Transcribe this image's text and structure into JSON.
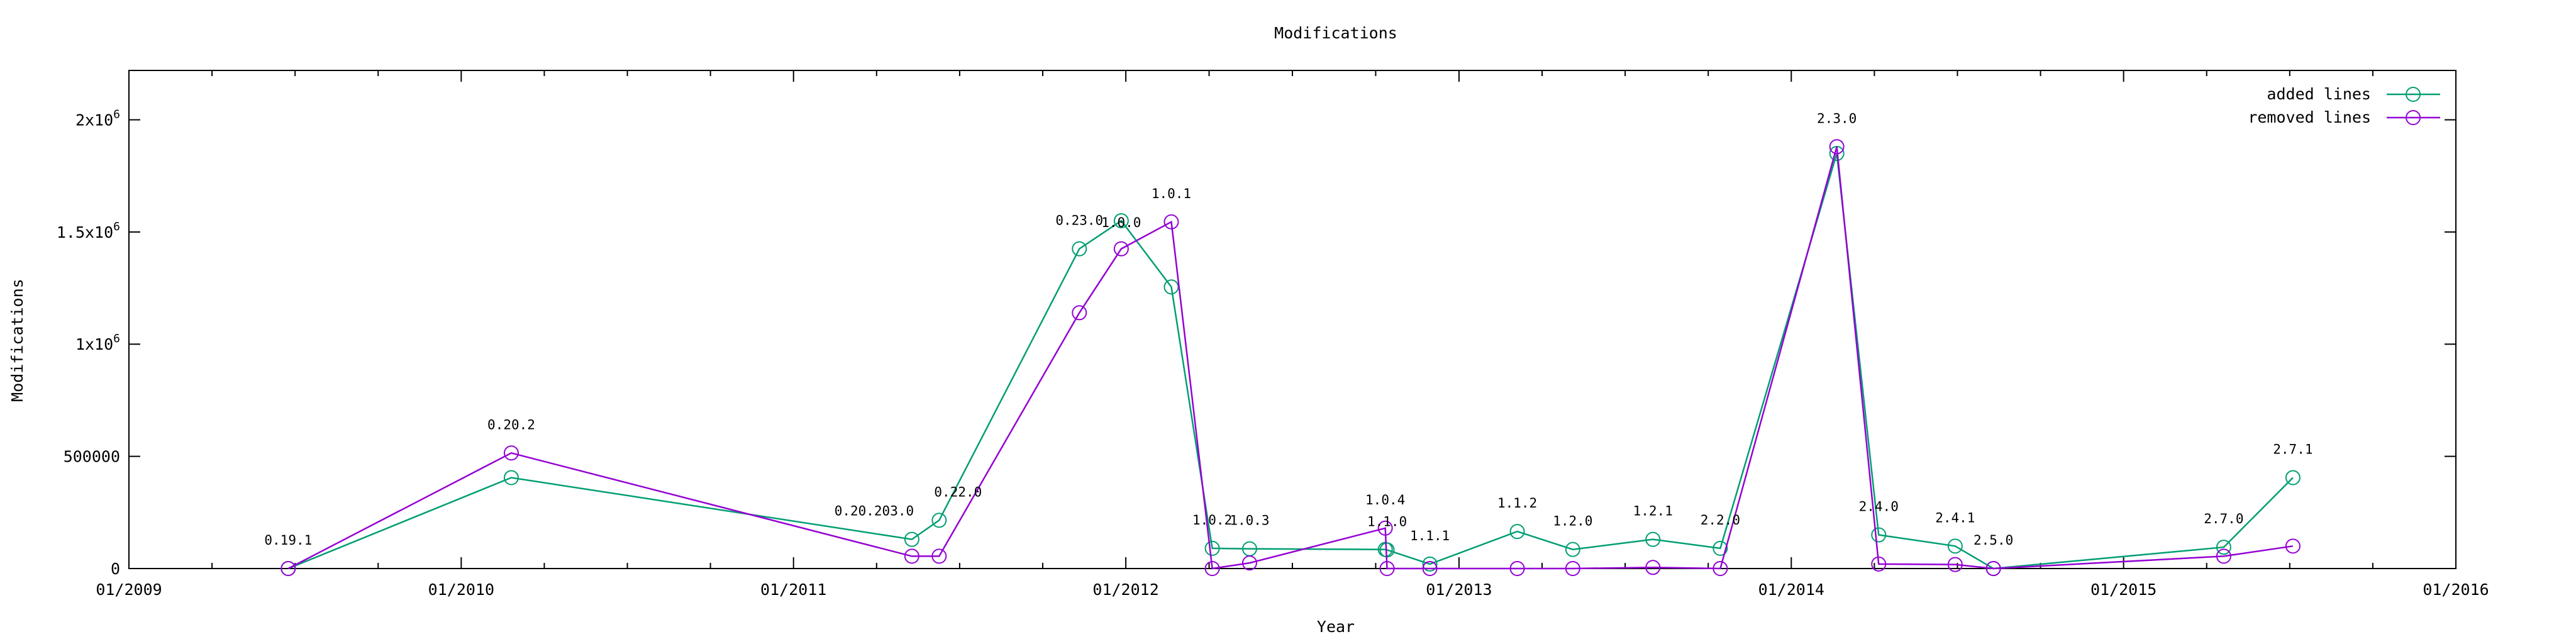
{
  "chart_data": {
    "type": "line",
    "title": "Modifications",
    "xlabel": "Year",
    "ylabel": "Modifications",
    "xlim": [
      "2009-01-01",
      "2016-01-01"
    ],
    "ylim": [
      0,
      2220000
    ],
    "x_ticks": [
      {
        "date": "2009-01-01",
        "label": "01/2009"
      },
      {
        "date": "2010-01-01",
        "label": "01/2010"
      },
      {
        "date": "2011-01-01",
        "label": "01/2011"
      },
      {
        "date": "2012-01-01",
        "label": "01/2012"
      },
      {
        "date": "2013-01-01",
        "label": "01/2013"
      },
      {
        "date": "2014-01-01",
        "label": "01/2014"
      },
      {
        "date": "2015-01-01",
        "label": "01/2015"
      },
      {
        "date": "2016-01-01",
        "label": "01/2016"
      }
    ],
    "y_ticks": [
      {
        "value": 0,
        "label": "0"
      },
      {
        "value": 500000,
        "label": "500000"
      },
      {
        "value": 1000000,
        "label": "1x10",
        "sup": "6"
      },
      {
        "value": 1500000,
        "label": "1.5x10",
        "sup": "6"
      },
      {
        "value": 2000000,
        "label": "2x10",
        "sup": "6"
      }
    ],
    "grid": false,
    "legend_position": "top-right",
    "releases": [
      {
        "label": "0.19.1",
        "date": "2009-06-25"
      },
      {
        "label": "0.20.2",
        "date": "2010-02-25"
      },
      {
        "label": "0.20.203.0",
        "date": "2011-05-11"
      },
      {
        "label": "0.22.0",
        "date": "2011-06-10"
      },
      {
        "label": "0.23.0",
        "date": "2011-11-11"
      },
      {
        "label": "1.0.0",
        "date": "2011-12-27"
      },
      {
        "label": "1.0.1",
        "date": "2012-02-20"
      },
      {
        "label": "1.0.2",
        "date": "2012-04-05"
      },
      {
        "label": "1.0.3",
        "date": "2012-05-16"
      },
      {
        "label": "1.0.4",
        "date": "2012-10-12"
      },
      {
        "label": "1.1.0",
        "date": "2012-10-14"
      },
      {
        "label": "1.1.1",
        "date": "2012-11-30"
      },
      {
        "label": "1.1.2",
        "date": "2013-03-06"
      },
      {
        "label": "1.2.0",
        "date": "2013-05-06"
      },
      {
        "label": "1.2.1",
        "date": "2013-08-02"
      },
      {
        "label": "2.2.0",
        "date": "2013-10-15"
      },
      {
        "label": "2.3.0",
        "date": "2014-02-20"
      },
      {
        "label": "2.4.0",
        "date": "2014-04-07"
      },
      {
        "label": "2.4.1",
        "date": "2014-06-30"
      },
      {
        "label": "2.5.0",
        "date": "2014-08-11"
      },
      {
        "label": "2.7.0",
        "date": "2015-04-21"
      },
      {
        "label": "2.7.1",
        "date": "2015-07-06"
      }
    ],
    "label_offsets": {
      "0.20.203.0": [
        -60,
        -38
      ],
      "0.22.0": [
        30,
        -38
      ],
      "0.23.0": [
        0,
        -38
      ],
      "1.0.0": [
        0,
        10
      ],
      "1.0.2": [
        0,
        -38
      ],
      "1.0.3": [
        0,
        -38
      ],
      "1.0.4": [
        0,
        -38
      ],
      "1.1.0": [
        0,
        -38
      ],
      "1.1.1": [
        0,
        -38
      ],
      "1.1.2": [
        0,
        -38
      ],
      "1.2.0": [
        0,
        -38
      ],
      "1.2.1": [
        0,
        -38
      ],
      "2.2.0": [
        0,
        -38
      ],
      "2.4.0": [
        0,
        -38
      ],
      "2.4.1": [
        0,
        -38
      ],
      "2.5.0": [
        0,
        -38
      ],
      "2.7.0": [
        0,
        -38
      ],
      "2.7.1": [
        0,
        -38
      ]
    },
    "series": [
      {
        "name": "added lines",
        "color": "#009e73",
        "values": [
          0,
          405000,
          130000,
          215000,
          1425000,
          1550000,
          1255000,
          90000,
          88000,
          85000,
          83000,
          20000,
          165000,
          85000,
          130000,
          90000,
          1850000,
          150000,
          100000,
          0,
          95000,
          405000
        ]
      },
      {
        "name": "removed lines",
        "color": "#9400d3",
        "values": [
          0,
          515000,
          55000,
          55000,
          1140000,
          1425000,
          1545000,
          0,
          25000,
          180000,
          0,
          0,
          0,
          0,
          5000,
          0,
          1880000,
          20000,
          18000,
          0,
          55000,
          100000
        ]
      }
    ]
  }
}
